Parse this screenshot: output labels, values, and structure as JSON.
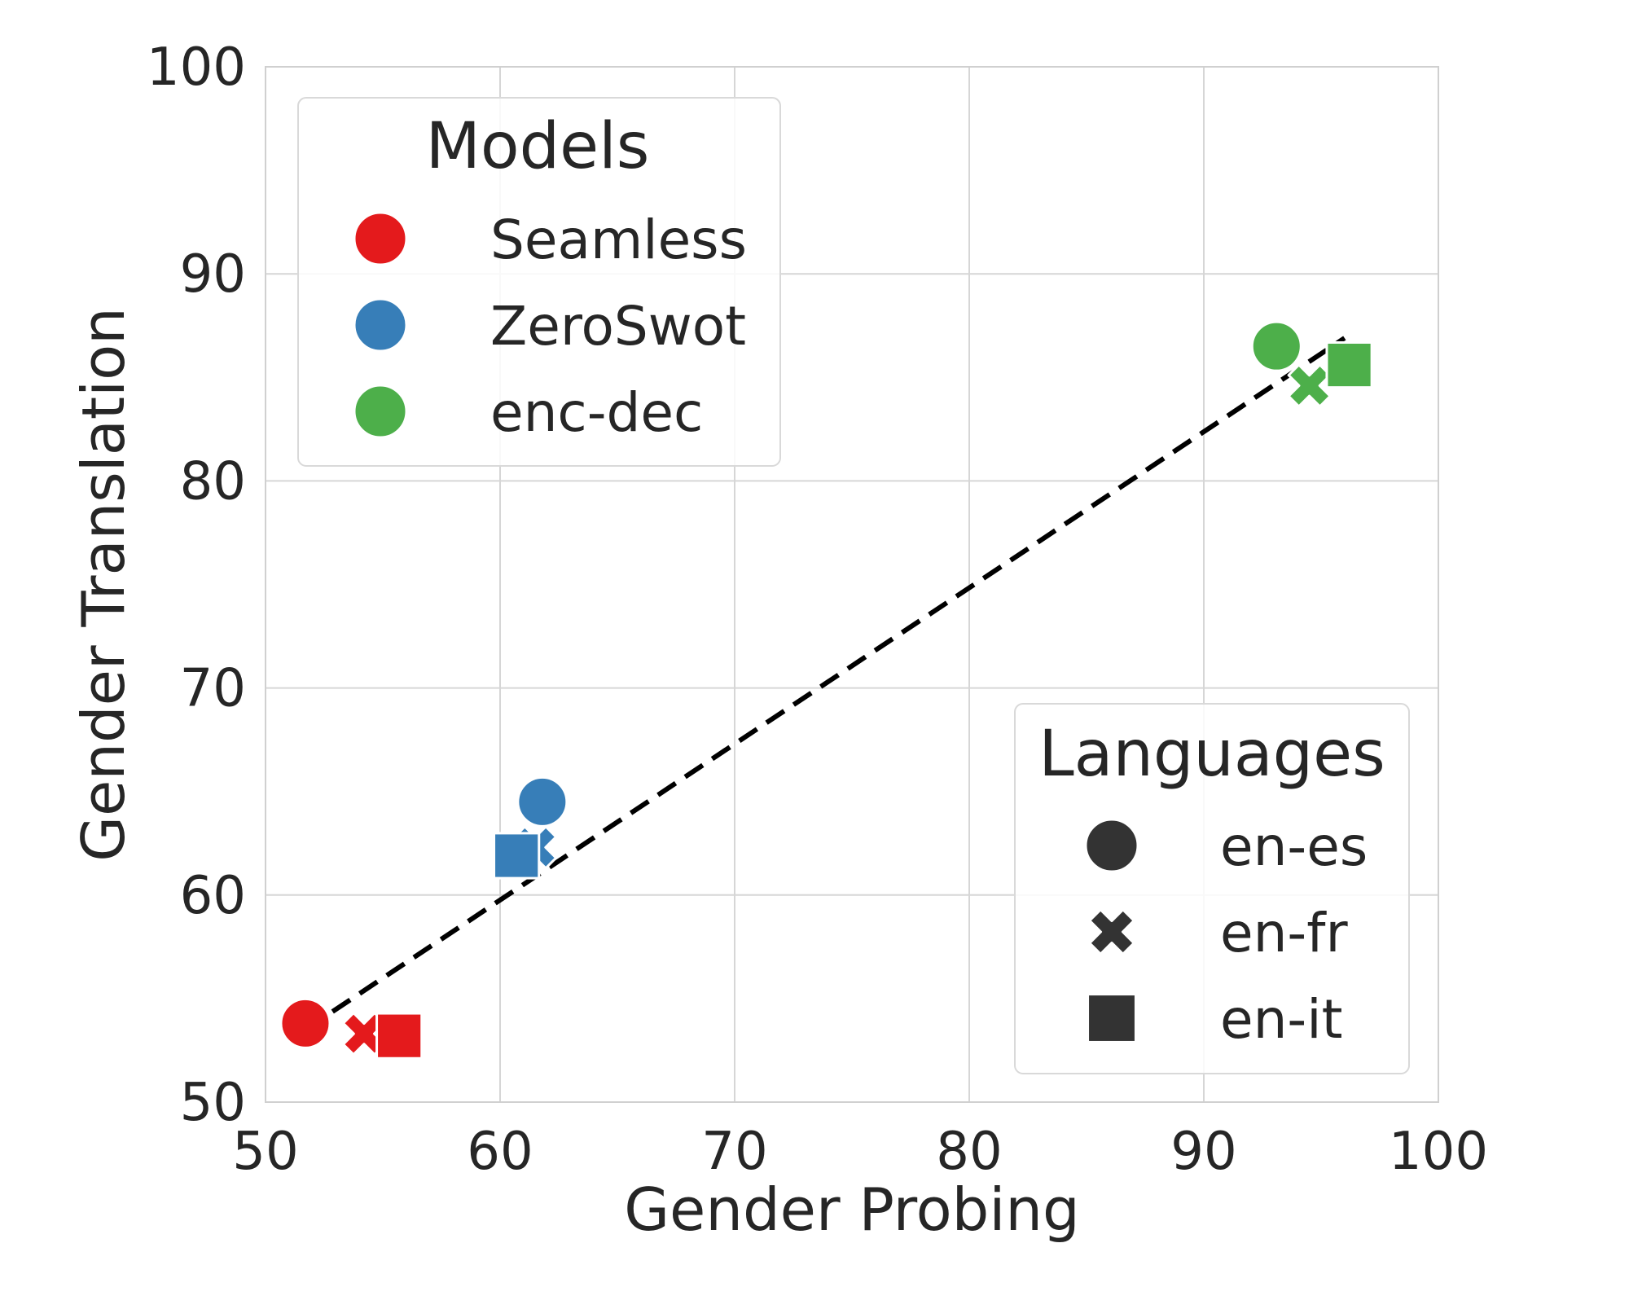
{
  "chart_data": {
    "type": "scatter",
    "xlabel": "Gender Probing",
    "ylabel": "Gender Translation",
    "xlim": [
      50,
      100
    ],
    "ylim": [
      50,
      100
    ],
    "xticks": [
      50,
      60,
      70,
      80,
      90,
      100
    ],
    "yticks": [
      50,
      60,
      70,
      80,
      90,
      100
    ],
    "grid": true,
    "colors": {
      "Seamless": "#e41a1c",
      "ZeroSwot": "#377eb8",
      "enc-dec": "#4daf4a",
      "legend_marker": "#333333"
    },
    "markers": {
      "en-es": "circle",
      "en-fr": "x",
      "en-it": "square"
    },
    "points": [
      {
        "model": "Seamless",
        "language": "en-es",
        "x": 51.7,
        "y": 53.8
      },
      {
        "model": "Seamless",
        "language": "en-fr",
        "x": 54.2,
        "y": 53.3
      },
      {
        "model": "Seamless",
        "language": "en-it",
        "x": 55.7,
        "y": 53.2
      },
      {
        "model": "ZeroSwot",
        "language": "en-es",
        "x": 61.8,
        "y": 64.5
      },
      {
        "model": "ZeroSwot",
        "language": "en-fr",
        "x": 61.5,
        "y": 62.3
      },
      {
        "model": "ZeroSwot",
        "language": "en-it",
        "x": 60.7,
        "y": 61.9
      },
      {
        "model": "enc-dec",
        "language": "en-es",
        "x": 93.1,
        "y": 86.5
      },
      {
        "model": "enc-dec",
        "language": "en-fr",
        "x": 94.5,
        "y": 84.6
      },
      {
        "model": "enc-dec",
        "language": "en-it",
        "x": 96.2,
        "y": 85.6
      }
    ],
    "trend_line": {
      "x": [
        51.7,
        96.0
      ],
      "y": [
        53.5,
        86.9
      ]
    },
    "legends": [
      {
        "title": "Models",
        "placement": "top-left",
        "entries": [
          "Seamless",
          "ZeroSwot",
          "enc-dec"
        ]
      },
      {
        "title": "Languages",
        "placement": "bottom-right",
        "entries": [
          "en-es",
          "en-fr",
          "en-it"
        ]
      }
    ]
  }
}
